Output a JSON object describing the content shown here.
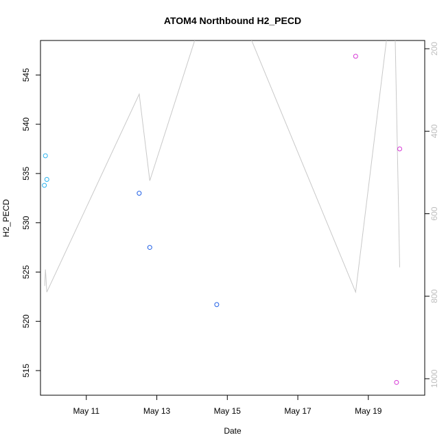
{
  "chart_data": {
    "type": "scatter",
    "title": "ATOM4 Northbound H2_PECD",
    "xlabel": "Date",
    "ylabel": "H2_PECD",
    "x_ticks": [
      {
        "label": "May 11",
        "day": 11
      },
      {
        "label": "May 13",
        "day": 13
      },
      {
        "label": "May 15",
        "day": 15
      },
      {
        "label": "May 17",
        "day": 17
      },
      {
        "label": "May 19",
        "day": 19
      }
    ],
    "xlim": [
      9.7,
      20.6
    ],
    "ylim": [
      512.5,
      548.5
    ],
    "y_ticks": [
      515,
      520,
      525,
      530,
      535,
      540,
      545
    ],
    "right_axis": {
      "ticks": [
        200,
        400,
        600,
        800,
        1000
      ],
      "lim": [
        180,
        1040
      ],
      "color": "#bdbdbd",
      "reversed": true
    },
    "series": [
      {
        "color": "#2bb3ee",
        "points": [
          {
            "x": 9.84,
            "y": 536.8
          },
          {
            "x": 9.81,
            "y": 533.8
          },
          {
            "x": 9.88,
            "y": 534.4
          }
        ]
      },
      {
        "color": "#1f5fe6",
        "points": [
          {
            "x": 12.5,
            "y": 533.0
          },
          {
            "x": 12.8,
            "y": 527.5
          },
          {
            "x": 14.7,
            "y": 521.7
          }
        ]
      },
      {
        "color": "#d637d6",
        "points": [
          {
            "x": 18.64,
            "y": 546.9
          },
          {
            "x": 19.8,
            "y": 513.8
          },
          {
            "x": 19.89,
            "y": 537.5
          }
        ]
      }
    ],
    "line_series": {
      "color": "#c8c8c8",
      "axis": "right",
      "points": [
        {
          "x": 9.82,
          "y": 775
        },
        {
          "x": 9.84,
          "y": 735
        },
        {
          "x": 9.86,
          "y": 760
        },
        {
          "x": 9.88,
          "y": 790
        },
        {
          "x": 12.5,
          "y": 310
        },
        {
          "x": 12.8,
          "y": 520
        },
        {
          "x": 14.3,
          "y": 120
        },
        {
          "x": 15.4,
          "y": 120
        },
        {
          "x": 18.64,
          "y": 790
        },
        {
          "x": 19.6,
          "y": 120
        },
        {
          "x": 19.75,
          "y": 120
        },
        {
          "x": 19.89,
          "y": 730
        }
      ]
    }
  }
}
